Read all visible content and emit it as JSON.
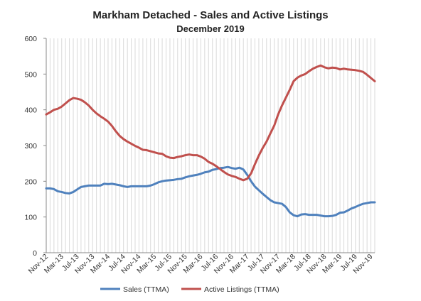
{
  "chart_data": {
    "type": "line",
    "title": "Markham Detached - Sales and Active Listings",
    "subtitle": "December 2019",
    "xlabel": "",
    "ylabel": "",
    "ylim": [
      0,
      600
    ],
    "yticks": [
      0,
      100,
      200,
      300,
      400,
      500,
      600
    ],
    "grid": {
      "vertical": true,
      "horizontal": false
    },
    "legend": "bottom",
    "x": [
      "Nov-12",
      "Dec-12",
      "Jan-13",
      "Feb-13",
      "Mar-13",
      "Apr-13",
      "May-13",
      "Jun-13",
      "Jul-13",
      "Aug-13",
      "Sep-13",
      "Oct-13",
      "Nov-13",
      "Dec-13",
      "Jan-14",
      "Feb-14",
      "Mar-14",
      "Apr-14",
      "May-14",
      "Jun-14",
      "Jul-14",
      "Aug-14",
      "Sep-14",
      "Oct-14",
      "Nov-14",
      "Dec-14",
      "Jan-15",
      "Feb-15",
      "Mar-15",
      "Apr-15",
      "May-15",
      "Jun-15",
      "Jul-15",
      "Aug-15",
      "Sep-15",
      "Oct-15",
      "Nov-15",
      "Dec-15",
      "Jan-16",
      "Feb-16",
      "Mar-16",
      "Apr-16",
      "May-16",
      "Jun-16",
      "Jul-16",
      "Aug-16",
      "Sep-16",
      "Oct-16",
      "Nov-16",
      "Dec-16",
      "Jan-17",
      "Feb-17",
      "Mar-17",
      "Apr-17",
      "May-17",
      "Jun-17",
      "Jul-17",
      "Aug-17",
      "Sep-17",
      "Oct-17",
      "Nov-17",
      "Dec-17",
      "Jan-18",
      "Feb-18",
      "Mar-18",
      "Apr-18",
      "May-18",
      "Jun-18",
      "Jul-18",
      "Aug-18",
      "Sep-18",
      "Oct-18",
      "Nov-18",
      "Dec-18",
      "Jan-19",
      "Feb-19",
      "Mar-19",
      "Apr-19",
      "May-19",
      "Jun-19",
      "Jul-19",
      "Aug-19",
      "Sep-19",
      "Oct-19",
      "Nov-19",
      "Dec-19"
    ],
    "x_tick_labels": [
      "Nov-12",
      "Mar-13",
      "Jul-13",
      "Nov-13",
      "Mar-14",
      "Jul-14",
      "Nov-14",
      "Mar-15",
      "Jul-15",
      "Nov-15",
      "Mar-16",
      "Jul-16",
      "Nov-16",
      "Mar-17",
      "Jul-17",
      "Nov-17",
      "Mar-18",
      "Jul-18",
      "Nov-18",
      "Mar-19",
      "Jul-19",
      "Nov-19"
    ],
    "series": [
      {
        "name": "Sales (TTMA)",
        "color": "#4f81bd",
        "values": [
          180,
          180,
          178,
          172,
          170,
          167,
          166,
          170,
          177,
          184,
          186,
          188,
          188,
          188,
          188,
          193,
          192,
          193,
          191,
          189,
          186,
          184,
          186,
          186,
          186,
          186,
          186,
          188,
          192,
          197,
          200,
          202,
          203,
          204,
          206,
          207,
          211,
          214,
          216,
          218,
          221,
          225,
          227,
          232,
          234,
          237,
          238,
          240,
          237,
          235,
          238,
          233,
          218,
          200,
          185,
          175,
          165,
          156,
          147,
          141,
          139,
          137,
          128,
          113,
          105,
          102,
          107,
          108,
          106,
          106,
          106,
          104,
          102,
          102,
          103,
          106,
          112,
          113,
          118,
          124,
          128,
          133,
          137,
          139,
          141,
          141
        ]
      },
      {
        "name": "Active Listings (TTMA)",
        "color": "#c0504d",
        "values": [
          387,
          393,
          400,
          403,
          409,
          418,
          427,
          433,
          431,
          428,
          421,
          412,
          400,
          390,
          382,
          375,
          367,
          355,
          340,
          327,
          318,
          311,
          305,
          299,
          294,
          288,
          287,
          284,
          281,
          278,
          277,
          270,
          266,
          265,
          268,
          270,
          273,
          275,
          273,
          273,
          269,
          263,
          254,
          249,
          242,
          234,
          226,
          219,
          215,
          212,
          207,
          203,
          207,
          222,
          248,
          272,
          293,
          311,
          334,
          356,
          387,
          412,
          434,
          456,
          480,
          490,
          496,
          500,
          508,
          515,
          520,
          524,
          519,
          516,
          518,
          517,
          513,
          515,
          513,
          512,
          511,
          509,
          506,
          498,
          489,
          480
        ]
      }
    ]
  }
}
